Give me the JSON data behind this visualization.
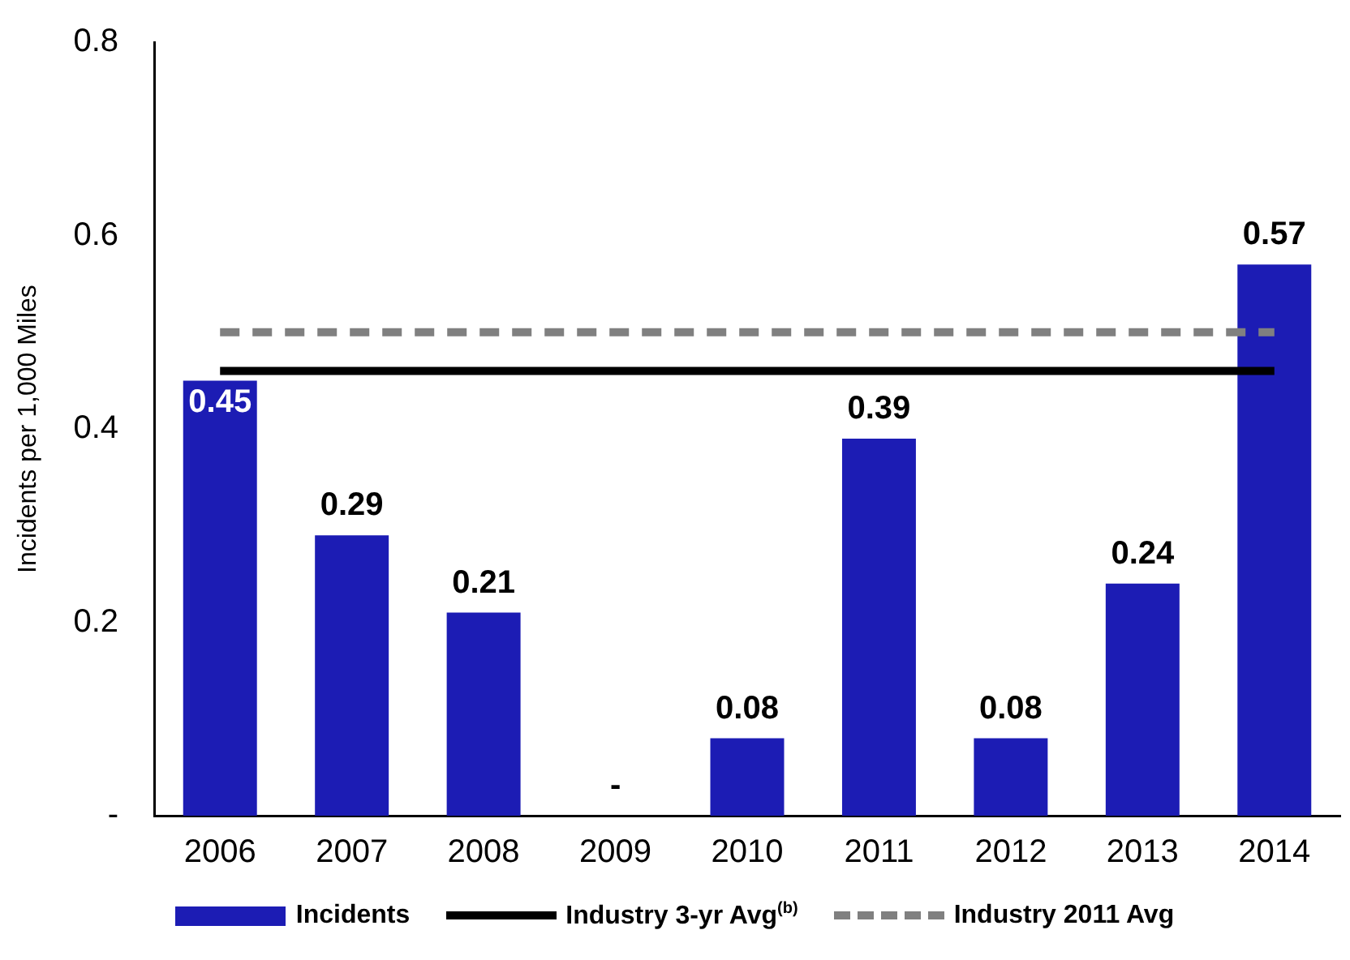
{
  "chart_data": {
    "type": "bar",
    "ylabel": "Incidents per 1,000 Miles",
    "categories": [
      "2006",
      "2007",
      "2008",
      "2009",
      "2010",
      "2011",
      "2012",
      "2013",
      "2014"
    ],
    "series": [
      {
        "name": "Incidents",
        "color": "#1c1cb4",
        "values": [
          0.45,
          0.29,
          0.21,
          0,
          0.08,
          0.39,
          0.08,
          0.24,
          0.57
        ],
        "value_labels": [
          "0.45",
          "0.29",
          "0.21",
          "-",
          "0.08",
          "0.39",
          "0.08",
          "0.24",
          "0.57"
        ]
      },
      {
        "name": "Industry 3-yr Avg$^{(b)}$",
        "type": "line",
        "color": "#000000",
        "line_style": "solid",
        "values": [
          0.46,
          0.46,
          0.46,
          0.46,
          0.46,
          0.46,
          0.46,
          0.46,
          0.46
        ]
      },
      {
        "name": "Industry 2011 Avg",
        "type": "line",
        "color": "#808080",
        "line_style": "dashed",
        "values": [
          0.5,
          0.5,
          0.5,
          0.5,
          0.5,
          0.5,
          0.5,
          0.5,
          0.5
        ]
      }
    ],
    "ylim": [
      0,
      0.8
    ],
    "yticks": [
      {
        "value": 0,
        "label": "-"
      },
      0.2,
      0.4,
      0.6,
      0.8
    ],
    "grid": false,
    "legend": "bottom",
    "marker": "none"
  }
}
